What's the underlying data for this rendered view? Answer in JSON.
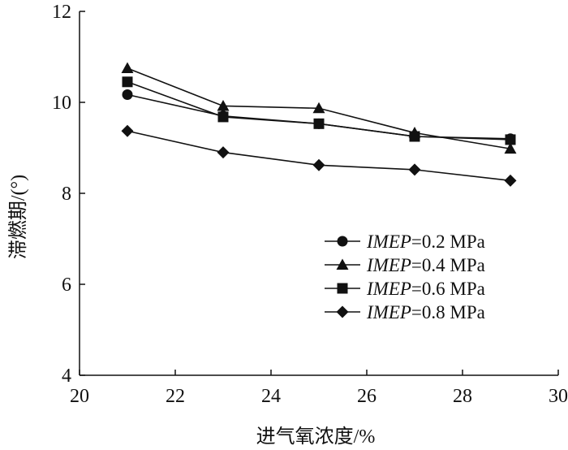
{
  "chart_data": {
    "type": "line",
    "title": "",
    "xlabel": "进气氧浓度/%",
    "ylabel": "滞燃期/(°)",
    "xlim": [
      20,
      30
    ],
    "ylim": [
      4,
      12
    ],
    "xticks": [
      20,
      22,
      24,
      26,
      28,
      30
    ],
    "yticks": [
      4,
      6,
      8,
      10,
      12
    ],
    "x_tick_labels": [
      "20",
      "22",
      "24",
      "26",
      "28",
      "30"
    ],
    "y_tick_labels": [
      "4",
      "6",
      "8",
      "10",
      "12"
    ],
    "grid": false,
    "legend_position": "bottom-right",
    "x": [
      21,
      23,
      25,
      27,
      29
    ],
    "series": [
      {
        "name_var": "IMEP",
        "name_rest": "=0.2 MPa",
        "marker": "circle",
        "values": [
          10.17,
          9.7,
          9.53,
          9.25,
          9.2
        ]
      },
      {
        "name_var": "IMEP",
        "name_rest": "=0.4 MPa",
        "marker": "triangle",
        "values": [
          10.75,
          9.92,
          9.87,
          9.33,
          8.98
        ]
      },
      {
        "name_var": "IMEP",
        "name_rest": "=0.6 MPa",
        "marker": "square",
        "values": [
          10.45,
          9.68,
          9.53,
          9.25,
          9.18
        ]
      },
      {
        "name_var": "IMEP",
        "name_rest": "=0.8 MPa",
        "marker": "diamond",
        "values": [
          9.37,
          8.9,
          8.62,
          8.52,
          8.28
        ]
      }
    ]
  }
}
